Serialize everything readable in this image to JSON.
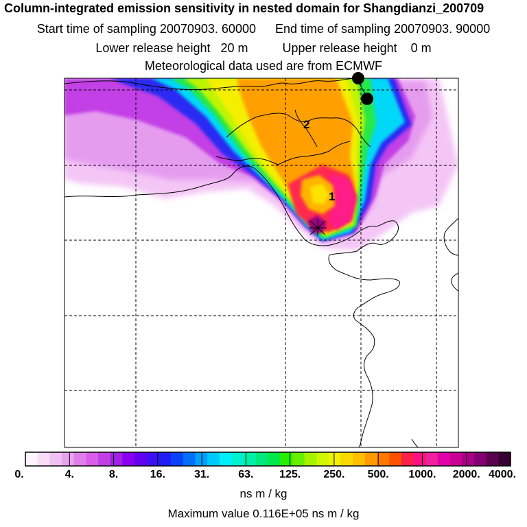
{
  "header": {
    "title": "Column-integrated emission sensitivity in nested domain for Shangdianzi_200709",
    "start_label": "Start time of sampling 20070903. 60000",
    "end_label": "End time of sampling 20070903. 90000",
    "lower_label": "Lower release height   20 m",
    "upper_label": "Upper release height    0 m",
    "met_label": "Meteorological data used are from ECMWF"
  },
  "map": {
    "markers": [
      {
        "label": "1"
      },
      {
        "label": "2"
      }
    ]
  },
  "legend": {
    "tick_labels": [
      "0.",
      "4.",
      "8.",
      "16.",
      "31.",
      "63.",
      "125.",
      "250.",
      "500.",
      "1000.",
      "2000.",
      "4000."
    ],
    "colors": [
      "#fdf4fd",
      "#f7dcf8",
      "#f0c0f3",
      "#e8a2ee",
      "#df7eea",
      "#d85ee8",
      "#c23fe6",
      "#a21fe6",
      "#8a00f0",
      "#6200f0",
      "#3c10f2",
      "#1e1ef5",
      "#0a42f8",
      "#0070f8",
      "#00a0fa",
      "#00c8fa",
      "#00eefa",
      "#00f0d0",
      "#00f0a6",
      "#00e87a",
      "#00e84a",
      "#2aee00",
      "#66f000",
      "#a6f400",
      "#d0f600",
      "#f0f000",
      "#f8d800",
      "#ffbe00",
      "#ff9a00",
      "#ff7800",
      "#ff5000",
      "#ff2048",
      "#ff1080",
      "#f0209e",
      "#e400a8",
      "#c80096",
      "#a80086",
      "#820070",
      "#5a004e",
      "#380030"
    ],
    "units": "ns m / kg",
    "max_value": "Maximum value  0.116E+05 ns m / kg"
  }
}
